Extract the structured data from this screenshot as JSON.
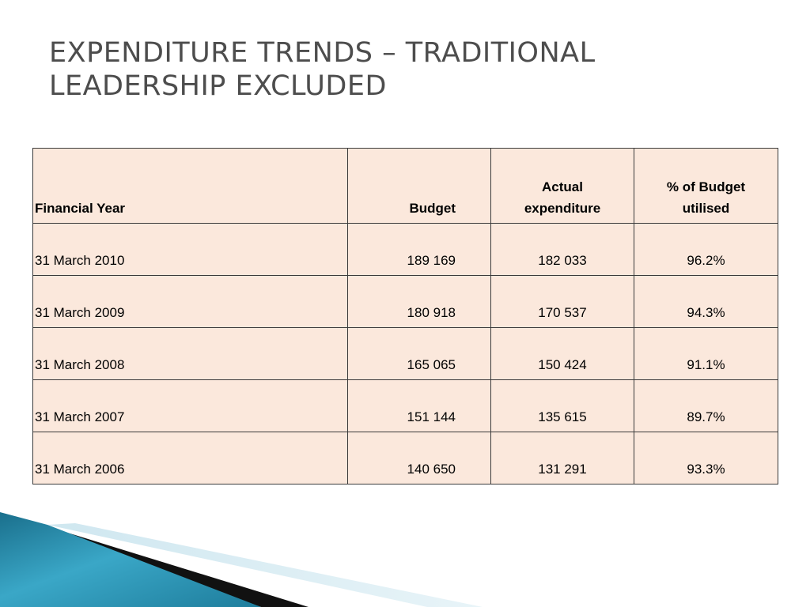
{
  "slide": {
    "title_lines": [
      "EXPENDITURE TRENDS – TRADITIONAL",
      "LEADERSHIP EXCLUDED"
    ]
  },
  "table": {
    "headers": [
      "Financial Year",
      "Budget",
      "Actual expenditure",
      "% of Budget utilised"
    ],
    "rows": [
      [
        "31 March 2010",
        "189 169",
        "182 033",
        "96.2%"
      ],
      [
        "31 March 2009",
        "180 918",
        "170 537",
        "94.3%"
      ],
      [
        "31 March 2008",
        "165 065",
        "150 424",
        "91.1%"
      ],
      [
        "31 March 2007",
        "151 144",
        "135 615",
        "89.7%"
      ],
      [
        "31 March 2006",
        "140 650",
        "131 291",
        "93.3%"
      ]
    ]
  },
  "colors": {
    "table_fill": "#fbe8dc",
    "title_text": "#4d4d4d",
    "accent_blue": "#2a8fae",
    "accent_dark": "#111111"
  }
}
